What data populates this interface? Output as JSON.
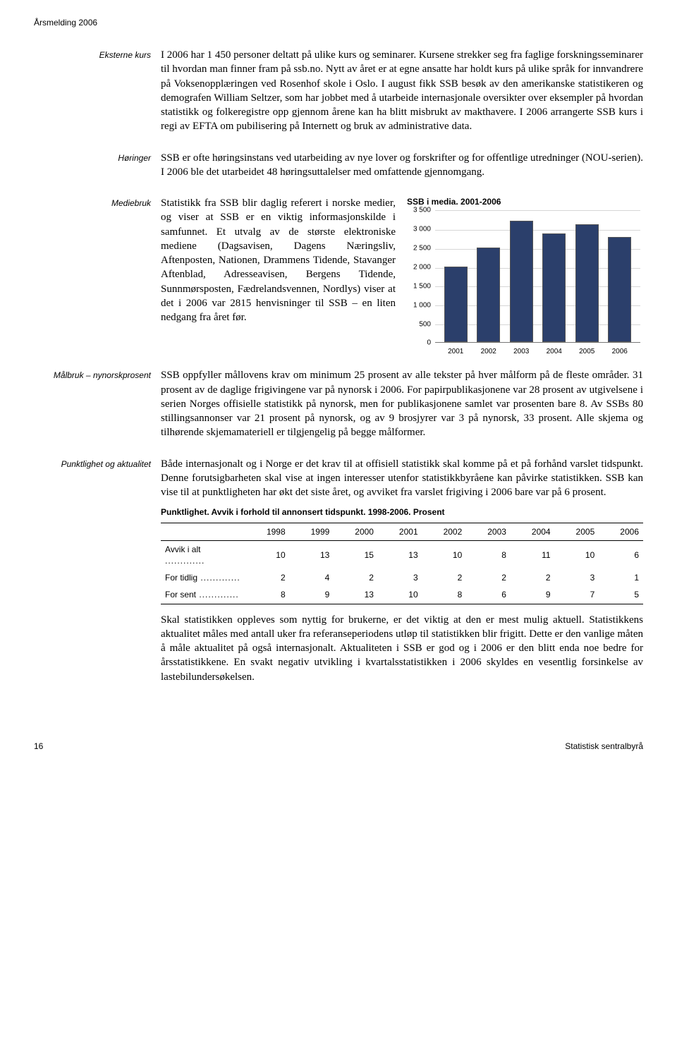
{
  "header": {
    "small": "Årsmelding 2006"
  },
  "sections": {
    "eksterne_label": "Eksterne kurs",
    "eksterne_text": "I 2006 har 1 450 personer deltatt på ulike kurs og seminarer. Kursene strekker seg fra faglige forskningsseminarer til hvordan man finner fram på ssb.no. Nytt av året er at egne ansatte har holdt kurs på ulike språk for innvandrere på Voksenopplæringen ved Rosenhof skole i Oslo. I august fikk SSB besøk av den amerikanske statistikeren og demografen William Seltzer, som har jobbet med å utarbeide internasjonale oversikter over eksempler på hvordan statistikk og folkeregistre opp gjennom årene kan ha blitt misbrukt av makthavere. I 2006 arrangerte SSB kurs i regi av EFTA om pubilisering på Internett og bruk av administrative data.",
    "horinger_label": "Høringer",
    "horinger_text": "SSB er ofte høringsinstans ved utarbeiding av nye lover og forskrifter og for offentlige utredninger (NOU-serien). I 2006 ble det utarbeidet 48 høringsuttalelser med omfattende gjennomgang.",
    "mediebruk_label": "Mediebruk",
    "mediebruk_text": "Statistikk fra SSB blir daglig referert i norske medier, og viser at SSB er en viktig informasjonskilde i samfunnet. Et utvalg av de største elektroniske mediene (Dagsavisen, Dagens Næringsliv, Aftenposten, Nationen, Drammens Tidende, Stavanger Aftenblad, Adresseavisen, Bergens Tidende, Sunnmørsposten, Fædrelandsvennen, Nordlys) viser at det i 2006 var 2815 henvisninger til SSB – en liten nedgang fra året før.",
    "malbruk_label": "Målbruk – nynorskprosent",
    "malbruk_text": "SSB oppfyller mållovens krav om minimum 25 prosent av alle tekster på hver målform på de fleste områder. 31 prosent av de daglige frigivingene var på nynorsk i 2006. For papirpublikasjonene var 28 prosent av utgivelsene i serien Norges offisielle statistikk på nynorsk, men for publikasjonene samlet var prosenten bare 8. Av SSBs 80 stillingsannonser var 21 prosent på nynorsk, og av 9 brosjyrer var 3 på nynorsk, 33 prosent. Alle skjema og tilhørende skjemamateriell er tilgjengelig på begge målformer.",
    "punkt_label": "Punktlighet og aktualitet",
    "punkt_text1": "Både internasjonalt og i Norge er det krav til at offisiell statistikk skal komme på et på forhånd varslet tidspunkt. Denne forutsigbarheten skal vise at ingen interesser utenfor statistikkbyråene kan påvirke statistikken. SSB kan vise til at punktligheten har økt det siste året, og avviket fra varslet frigiving i 2006 bare var på 6 prosent.",
    "punkt_text2": "Skal statistikken oppleves som nyttig for brukerne, er det viktig at den er mest mulig aktuell. Statistikkens aktualitet måles med antall uker fra referanseperiodens utløp til statistikken blir frigitt. Dette er den vanlige måten å måle aktualitet på også internasjonalt. Aktualiteten i SSB er god og i 2006 er den blitt enda noe bedre for årsstatistikkene. En svakt negativ utvikling i kvartalsstatistikken i 2006 skyldes en vesentlig forsinkelse av lastebilundersøkelsen."
  },
  "chart": {
    "title": "SSB i media. 2001-2006",
    "type": "bar",
    "ymax": 3500,
    "ytick_step": 500,
    "yticks": [
      "0",
      "500",
      "1 000",
      "1 500",
      "2 000",
      "2 500",
      "3 000",
      "3 500"
    ],
    "categories": [
      "2001",
      "2002",
      "2003",
      "2004",
      "2005",
      "2006"
    ],
    "values": [
      2030,
      2520,
      3250,
      2900,
      3150,
      2815
    ],
    "bar_color": "#2b3f6b",
    "bar_border": "#555555",
    "grid_color": "#d6d6d6",
    "background": "#ffffff",
    "label_fontsize": 10
  },
  "table": {
    "title": "Punktlighet. Avvik i forhold til annonsert tidspunkt. 1998-2006. Prosent",
    "columns": [
      "",
      "1998",
      "1999",
      "2000",
      "2001",
      "2002",
      "2003",
      "2004",
      "2005",
      "2006"
    ],
    "rows": [
      {
        "label": "Avvik i alt",
        "cells": [
          "10",
          "13",
          "15",
          "13",
          "10",
          "8",
          "11",
          "10",
          "6"
        ]
      },
      {
        "label": "For tidlig",
        "cells": [
          "2",
          "4",
          "2",
          "3",
          "2",
          "2",
          "2",
          "3",
          "1"
        ]
      },
      {
        "label": "For sent",
        "cells": [
          "8",
          "9",
          "13",
          "10",
          "8",
          "6",
          "9",
          "7",
          "5"
        ]
      }
    ]
  },
  "footer": {
    "page": "16",
    "org": "Statistisk sentralbyrå"
  }
}
